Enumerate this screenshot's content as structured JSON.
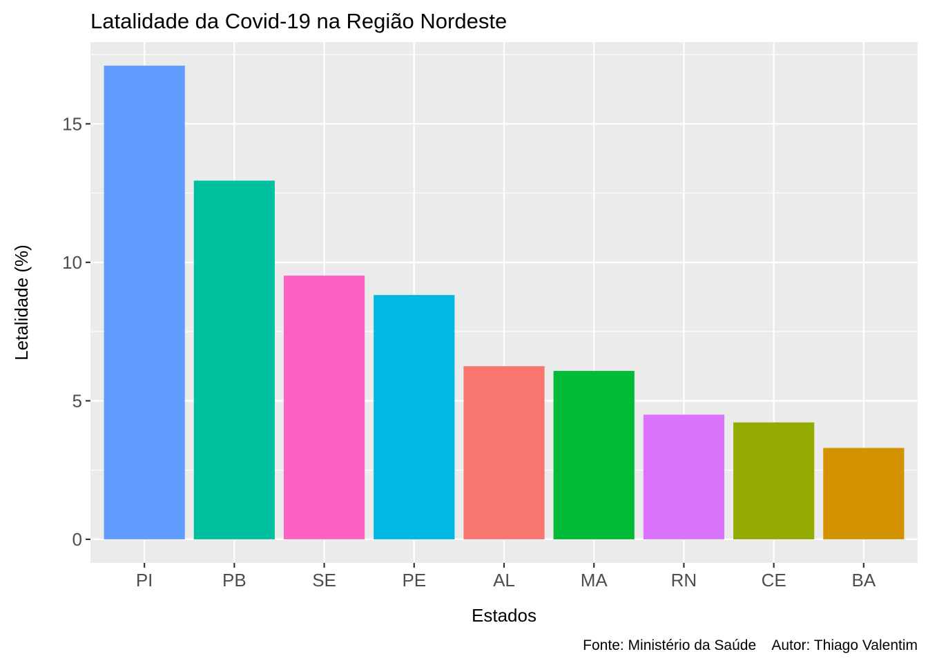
{
  "chart_data": {
    "type": "bar",
    "title": "Latalidade da Covid-19 na Região Nordeste",
    "xlabel": "Estados",
    "ylabel": "Letalidade (%)",
    "caption": "Fonte: Ministério da Saúde    Autor: Thiago Valentim",
    "categories": [
      "PI",
      "PB",
      "SE",
      "PE",
      "AL",
      "MA",
      "RN",
      "CE",
      "BA"
    ],
    "values": [
      17.1,
      12.95,
      9.52,
      8.82,
      6.25,
      6.08,
      4.5,
      4.22,
      3.3
    ],
    "colors": [
      "#619CFF",
      "#00C19F",
      "#FF61C3",
      "#00B9E3",
      "#F8766D",
      "#00BA38",
      "#DB72FB",
      "#93AA00",
      "#D39200"
    ],
    "ylim": [
      -0.85,
      17.95
    ],
    "yticks": [
      0,
      5,
      10,
      15
    ],
    "grid": true,
    "legend": "none",
    "panel_background": "#EBEBEB",
    "grid_color": "#FFFFFF"
  }
}
